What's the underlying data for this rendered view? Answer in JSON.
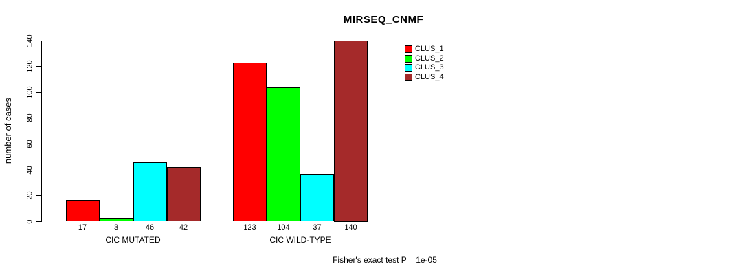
{
  "chart_data": {
    "type": "bar",
    "title": "MIRSEQ_CNMF",
    "ylabel": "number of cases",
    "xlabel": "",
    "ylim": [
      0,
      140
    ],
    "yticks": [
      0,
      20,
      40,
      60,
      80,
      100,
      120,
      140
    ],
    "categories": [
      "CIC MUTATED",
      "CIC WILD-TYPE"
    ],
    "series": [
      {
        "name": "CLUS_1",
        "color": "#ff0000",
        "values": [
          17,
          123
        ]
      },
      {
        "name": "CLUS_2",
        "color": "#00ff00",
        "values": [
          3,
          104
        ]
      },
      {
        "name": "CLUS_3",
        "color": "#00ffff",
        "values": [
          46,
          37
        ]
      },
      {
        "name": "CLUS_4",
        "color": "#a52a2a",
        "values": [
          42,
          140
        ]
      }
    ],
    "bar_labels": [
      [
        "17",
        "3",
        "46",
        "42"
      ],
      [
        "123",
        "104",
        "37",
        "140"
      ]
    ],
    "legend_position": "top-right",
    "grid": false,
    "annotation": "Fisher's exact test P = 1e-05"
  }
}
